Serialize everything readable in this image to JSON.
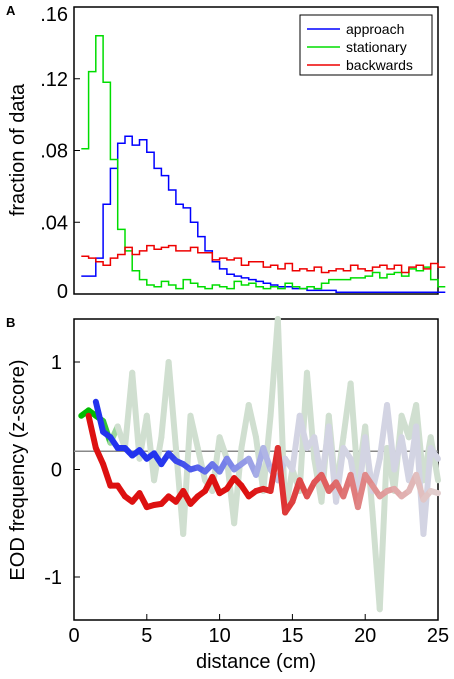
{
  "chart_data": [
    {
      "panel": "A",
      "type": "line",
      "style": "step-histogram",
      "ylabel": "fraction of data",
      "xlim": [
        0,
        25
      ],
      "ylim": [
        0,
        0.16
      ],
      "yticks": [
        {
          "value": 0,
          "label": "0"
        },
        {
          "value": 0.04,
          "label": ".04"
        },
        {
          "value": 0.08,
          "label": ".08"
        },
        {
          "value": 0.12,
          "label": ".12"
        },
        {
          "value": 0.16,
          "label": ".16"
        }
      ],
      "bin_width": 0.5,
      "bin_start": 0.5,
      "legend_position": "top-right",
      "series": [
        {
          "name": "approach",
          "color": "#0000ff",
          "values": [
            0.01,
            0.01,
            0.02,
            0.05,
            0.07,
            0.084,
            0.088,
            0.083,
            0.086,
            0.079,
            0.07,
            0.066,
            0.058,
            0.05,
            0.048,
            0.04,
            0.032,
            0.024,
            0.018,
            0.014,
            0.011,
            0.01,
            0.009,
            0.008,
            0.007,
            0.006,
            0.005,
            0.004,
            0.004,
            0.003,
            0.003,
            0.002,
            0.002,
            0.002,
            0.002,
            0.001,
            0.001,
            0.001,
            0.001,
            0.001,
            0.001,
            0.001,
            0.001,
            0.001,
            0.001,
            0.001,
            0.001,
            0.001,
            0.001,
            0.001
          ]
        },
        {
          "name": "stationary",
          "color": "#00dd00",
          "values": [
            0.081,
            0.124,
            0.144,
            0.118,
            0.075,
            0.036,
            0.024,
            0.013,
            0.008,
            0.005,
            0.004,
            0.007,
            0.005,
            0.003,
            0.008,
            0.006,
            0.004,
            0.003,
            0.005,
            0.004,
            0.003,
            0.007,
            0.005,
            0.006,
            0.004,
            0.003,
            0.004,
            0.003,
            0.006,
            0.004,
            0.003,
            0.004,
            0.003,
            0.006,
            0.008,
            0.008,
            0.008,
            0.009,
            0.009,
            0.01,
            0.012,
            0.009,
            0.011,
            0.012,
            0.01,
            0.014,
            0.013,
            0.015,
            0.008,
            0.004
          ]
        },
        {
          "name": "backwards",
          "color": "#ee0000",
          "values": [
            0.021,
            0.02,
            0.018,
            0.016,
            0.02,
            0.022,
            0.026,
            0.022,
            0.024,
            0.027,
            0.025,
            0.026,
            0.027,
            0.024,
            0.024,
            0.026,
            0.023,
            0.023,
            0.019,
            0.02,
            0.019,
            0.02,
            0.016,
            0.018,
            0.018,
            0.015,
            0.016,
            0.014,
            0.017,
            0.013,
            0.014,
            0.013,
            0.015,
            0.012,
            0.013,
            0.014,
            0.013,
            0.016,
            0.014,
            0.013,
            0.015,
            0.016,
            0.014,
            0.016,
            0.012,
            0.015,
            0.016,
            0.014,
            0.017,
            0.015
          ]
        }
      ]
    },
    {
      "panel": "B",
      "type": "line",
      "ylabel": "EOD frequency (z-score)",
      "xlabel": "distance (cm)",
      "xlim": [
        0,
        25
      ],
      "ylim": [
        -1.4,
        1.4
      ],
      "xticks": [
        {
          "value": 0,
          "label": "0"
        },
        {
          "value": 5,
          "label": "5"
        },
        {
          "value": 10,
          "label": "10"
        },
        {
          "value": 15,
          "label": "15"
        },
        {
          "value": 20,
          "label": "20"
        },
        {
          "value": 25,
          "label": "25"
        }
      ],
      "yticks": [
        {
          "value": -1,
          "label": "-1"
        },
        {
          "value": 0,
          "label": "0"
        },
        {
          "value": 1,
          "label": "1"
        }
      ],
      "reference_line": {
        "y": 0.17,
        "color": "#888888"
      },
      "series": [
        {
          "name": "stationary",
          "color": "#00bb00",
          "fade_start": 2,
          "fade_end": 3,
          "x": [
            0.5,
            1,
            1.5,
            2,
            2.5,
            3,
            3.5,
            4,
            4.5,
            5,
            5.5,
            6,
            6.5,
            7,
            7.5,
            8,
            8.5,
            9,
            9.5,
            10,
            10.5,
            11,
            11.5,
            12,
            12.5,
            13,
            13.5,
            14,
            14.5,
            15,
            15.5,
            16,
            16.5,
            17,
            17.5,
            18,
            18.5,
            19,
            19.5,
            20,
            20.5,
            21,
            21.5,
            22,
            22.5,
            23,
            23.5,
            24,
            24.5,
            25
          ],
          "y": [
            0.5,
            0.55,
            0.5,
            0.45,
            0.25,
            0.4,
            0.2,
            0.9,
            0.1,
            0.5,
            -0.1,
            0.3,
            1.0,
            0.2,
            -0.6,
            0.5,
            0.2,
            -0.1,
            -0.2,
            0.3,
            0.1,
            -0.5,
            0.2,
            0.6,
            0.3,
            -0.2,
            0.5,
            1.4,
            -0.4,
            0.0,
            -0.2,
            0.9,
            0.1,
            -0.3,
            0.5,
            -0.2,
            0.3,
            0.8,
            -0.1,
            0.4,
            -0.4,
            -1.3,
            0.2,
            -0.2,
            0.5,
            0.3,
            0.6,
            -0.1,
            0.3,
            -0.1
          ]
        },
        {
          "name": "approach",
          "color": "#2233ee",
          "fade_start": 6,
          "fade_end": 15,
          "x": [
            1.5,
            2,
            2.5,
            3,
            3.5,
            4,
            4.5,
            5,
            5.5,
            6,
            6.5,
            7,
            7.5,
            8,
            8.5,
            9,
            9.5,
            10,
            10.5,
            11,
            11.5,
            12,
            12.5,
            13,
            13.5,
            14,
            14.5,
            15,
            15.5,
            16,
            16.5,
            17,
            17.5,
            18,
            18.5,
            19,
            19.5,
            20,
            20.5,
            21,
            21.5,
            22,
            22.5,
            23,
            23.5,
            24,
            24.5,
            25
          ],
          "y": [
            0.63,
            0.35,
            0.3,
            0.2,
            0.2,
            0.13,
            0.18,
            0.1,
            0.15,
            0.05,
            0.15,
            0.08,
            0.05,
            0.0,
            0.02,
            -0.02,
            0.05,
            -0.02,
            0.1,
            0.0,
            0.05,
            0.1,
            -0.05,
            0.2,
            0.0,
            -0.1,
            0.1,
            0.0,
            0.5,
            0.2,
            0.3,
            -0.1,
            0.4,
            -0.3,
            0.2,
            0.1,
            -0.3,
            0.3,
            -0.2,
            0.1,
            0.6,
            0.0,
            0.3,
            -0.1,
            0.4,
            -0.6,
            0.2,
            0.1
          ]
        },
        {
          "name": "backwards",
          "color": "#dd1111",
          "fade_start": 12,
          "fade_end": 25,
          "x": [
            1,
            1.5,
            2,
            2.5,
            3,
            3.5,
            4,
            4.5,
            5,
            5.5,
            6,
            6.5,
            7,
            7.5,
            8,
            8.5,
            9,
            9.5,
            10,
            10.5,
            11,
            11.5,
            12,
            12.5,
            13,
            13.5,
            14,
            14.5,
            15,
            15.5,
            16,
            16.5,
            17,
            17.5,
            18,
            18.5,
            19,
            19.5,
            20,
            20.5,
            21,
            21.5,
            22,
            22.5,
            23,
            23.5,
            24,
            24.5,
            25
          ],
          "y": [
            0.5,
            0.2,
            0.05,
            -0.15,
            -0.15,
            -0.25,
            -0.3,
            -0.22,
            -0.35,
            -0.33,
            -0.32,
            -0.25,
            -0.3,
            -0.2,
            -0.32,
            -0.25,
            -0.2,
            -0.07,
            -0.22,
            -0.18,
            -0.08,
            -0.15,
            -0.25,
            -0.2,
            -0.18,
            -0.2,
            0.2,
            -0.4,
            -0.3,
            -0.1,
            -0.25,
            -0.12,
            -0.05,
            -0.2,
            -0.12,
            -0.25,
            -0.05,
            -0.35,
            -0.05,
            -0.15,
            -0.25,
            -0.2,
            -0.18,
            -0.25,
            -0.2,
            -0.05,
            -0.28,
            -0.2,
            -0.22
          ]
        }
      ]
    }
  ]
}
